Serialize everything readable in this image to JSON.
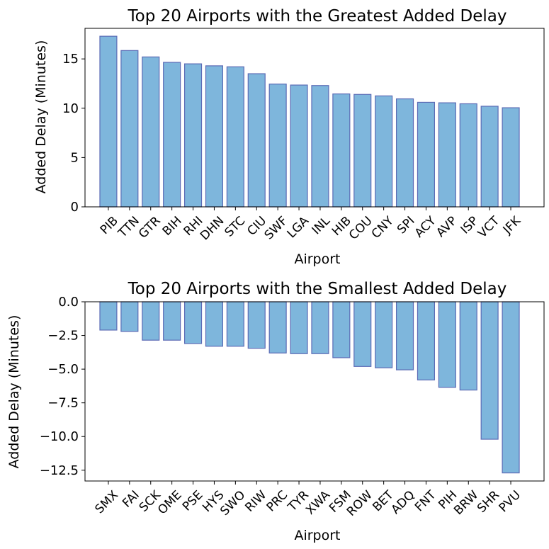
{
  "chart_data": [
    {
      "type": "bar",
      "title": "Top 20 Airports with the Greatest Added Delay",
      "xlabel": "Airport",
      "ylabel": "Added Delay (Minutes)",
      "ylim": [
        0,
        18.1
      ],
      "yticks": [
        0,
        5,
        10,
        15
      ],
      "ytick_labels": [
        "0",
        "5",
        "10",
        "15"
      ],
      "categories": [
        "PIB",
        "TTN",
        "GTR",
        "BIH",
        "RHI",
        "DHN",
        "STC",
        "CIU",
        "SWF",
        "LGA",
        "INL",
        "HIB",
        "COU",
        "CNY",
        "SPI",
        "ACY",
        "AVP",
        "ISP",
        "VCT",
        "JFK"
      ],
      "values": [
        17.3,
        15.85,
        15.2,
        14.65,
        14.5,
        14.3,
        14.2,
        13.5,
        12.45,
        12.35,
        12.3,
        11.45,
        11.4,
        11.25,
        10.95,
        10.6,
        10.55,
        10.45,
        10.2,
        10.05
      ],
      "bar_color": "#7eb6dc",
      "edge_color": "#5b6bb5"
    },
    {
      "type": "bar",
      "title": "Top 20 Airports with the Smallest Added Delay",
      "xlabel": "Airport",
      "ylabel": "Added Delay (Minutes)",
      "ylim": [
        -13.3,
        0
      ],
      "yticks": [
        0,
        -2.5,
        -5,
        -7.5,
        -10,
        -12.5
      ],
      "ytick_labels": [
        "0.0",
        "−2.5",
        "−5.0",
        "−7.5",
        "−10.0",
        "−12.5"
      ],
      "categories": [
        "SMX",
        "FAI",
        "SCK",
        "OME",
        "PSE",
        "HYS",
        "SWO",
        "RIW",
        "PRC",
        "TYR",
        "XWA",
        "FSM",
        "ROW",
        "BET",
        "ADQ",
        "FNT",
        "PIH",
        "BRW",
        "SHR",
        "PVU"
      ],
      "values": [
        -2.1,
        -2.2,
        -2.85,
        -2.85,
        -3.1,
        -3.3,
        -3.3,
        -3.45,
        -3.8,
        -3.85,
        -3.85,
        -4.15,
        -4.8,
        -4.9,
        -5.05,
        -5.8,
        -6.35,
        -6.55,
        -10.2,
        -12.7
      ],
      "bar_color": "#7eb6dc",
      "edge_color": "#5b6bb5"
    }
  ]
}
